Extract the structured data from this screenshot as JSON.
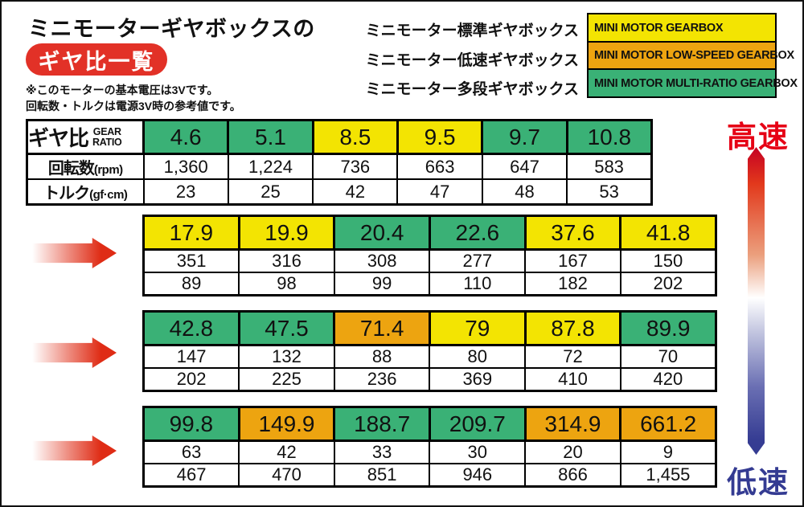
{
  "page": {
    "title": "ミニモーターギヤボックスの",
    "badge": "ギヤ比一覧",
    "note_line1": "※このモーターの基本電圧は3Vです。",
    "note_line2": "回転数・トルクは電源3V時の参考値です。",
    "high_speed_label": "高速",
    "low_speed_label": "低速"
  },
  "legend": {
    "items": [
      {
        "jp_label": "ミニモーター標準ギヤボックス",
        "en_label": "MINI MOTOR GEARBOX",
        "color": "#f3e402",
        "category": "standard"
      },
      {
        "jp_label": "ミニモーター低速ギヤボックス",
        "en_label": "MINI MOTOR LOW-SPEED GEARBOX",
        "color": "#eda410",
        "category": "low-speed"
      },
      {
        "jp_label": "ミニモーター多段ギヤボックス",
        "en_label": "MINI MOTOR MULTI-RATIO GEARBOX",
        "color": "#3ab176",
        "category": "multi-ratio"
      }
    ]
  },
  "table_headers": {
    "gear_ratio_jp": "ギヤ比",
    "gear_ratio_en_line1": "GEAR",
    "gear_ratio_en_line2": "RATIO",
    "rpm_label_jp": "回転数",
    "rpm_unit": "(rpm)",
    "torque_label_jp": "トルク",
    "torque_unit": "(gf·cm)"
  },
  "colors": {
    "standard": "#f3e402",
    "low-speed": "#eda410",
    "multi-ratio": "#3ab176",
    "accent_red": "#e23127",
    "accent_navy": "#343b92"
  },
  "chart_data": {
    "type": "table",
    "title": "ミニモーターギヤボックス ギヤ比一覧",
    "row_labels": [
      "ギヤ比 GEAR RATIO",
      "回転数(rpm)",
      "トルク(gf·cm)"
    ],
    "category_legend": {
      "standard": "yellow",
      "low-speed": "orange",
      "multi-ratio": "green"
    },
    "tables": [
      {
        "columns": [
          {
            "gear_ratio": "4.6",
            "rpm": "1,360",
            "torque": "23",
            "category": "multi-ratio"
          },
          {
            "gear_ratio": "5.1",
            "rpm": "1,224",
            "torque": "25",
            "category": "multi-ratio"
          },
          {
            "gear_ratio": "8.5",
            "rpm": "736",
            "torque": "42",
            "category": "standard"
          },
          {
            "gear_ratio": "9.5",
            "rpm": "663",
            "torque": "47",
            "category": "standard"
          },
          {
            "gear_ratio": "9.7",
            "rpm": "647",
            "torque": "48",
            "category": "multi-ratio"
          },
          {
            "gear_ratio": "10.8",
            "rpm": "583",
            "torque": "53",
            "category": "multi-ratio"
          }
        ]
      },
      {
        "columns": [
          {
            "gear_ratio": "17.9",
            "rpm": "351",
            "torque": "89",
            "category": "standard"
          },
          {
            "gear_ratio": "19.9",
            "rpm": "316",
            "torque": "98",
            "category": "standard"
          },
          {
            "gear_ratio": "20.4",
            "rpm": "308",
            "torque": "99",
            "category": "multi-ratio"
          },
          {
            "gear_ratio": "22.6",
            "rpm": "277",
            "torque": "110",
            "category": "multi-ratio"
          },
          {
            "gear_ratio": "37.6",
            "rpm": "167",
            "torque": "182",
            "category": "standard"
          },
          {
            "gear_ratio": "41.8",
            "rpm": "150",
            "torque": "202",
            "category": "standard"
          }
        ]
      },
      {
        "columns": [
          {
            "gear_ratio": "42.8",
            "rpm": "147",
            "torque": "202",
            "category": "multi-ratio"
          },
          {
            "gear_ratio": "47.5",
            "rpm": "132",
            "torque": "225",
            "category": "multi-ratio"
          },
          {
            "gear_ratio": "71.4",
            "rpm": "88",
            "torque": "236",
            "category": "low-speed"
          },
          {
            "gear_ratio": "79",
            "rpm": "80",
            "torque": "369",
            "category": "standard"
          },
          {
            "gear_ratio": "87.8",
            "rpm": "72",
            "torque": "410",
            "category": "standard"
          },
          {
            "gear_ratio": "89.9",
            "rpm": "70",
            "torque": "420",
            "category": "multi-ratio"
          }
        ]
      },
      {
        "columns": [
          {
            "gear_ratio": "99.8",
            "rpm": "63",
            "torque": "467",
            "category": "multi-ratio"
          },
          {
            "gear_ratio": "149.9",
            "rpm": "42",
            "torque": "470",
            "category": "low-speed"
          },
          {
            "gear_ratio": "188.7",
            "rpm": "33",
            "torque": "851",
            "category": "multi-ratio"
          },
          {
            "gear_ratio": "209.7",
            "rpm": "30",
            "torque": "946",
            "category": "multi-ratio"
          },
          {
            "gear_ratio": "314.9",
            "rpm": "20",
            "torque": "866",
            "category": "low-speed"
          },
          {
            "gear_ratio": "661.2",
            "rpm": "9",
            "torque": "1,455",
            "category": "low-speed"
          }
        ]
      }
    ]
  }
}
